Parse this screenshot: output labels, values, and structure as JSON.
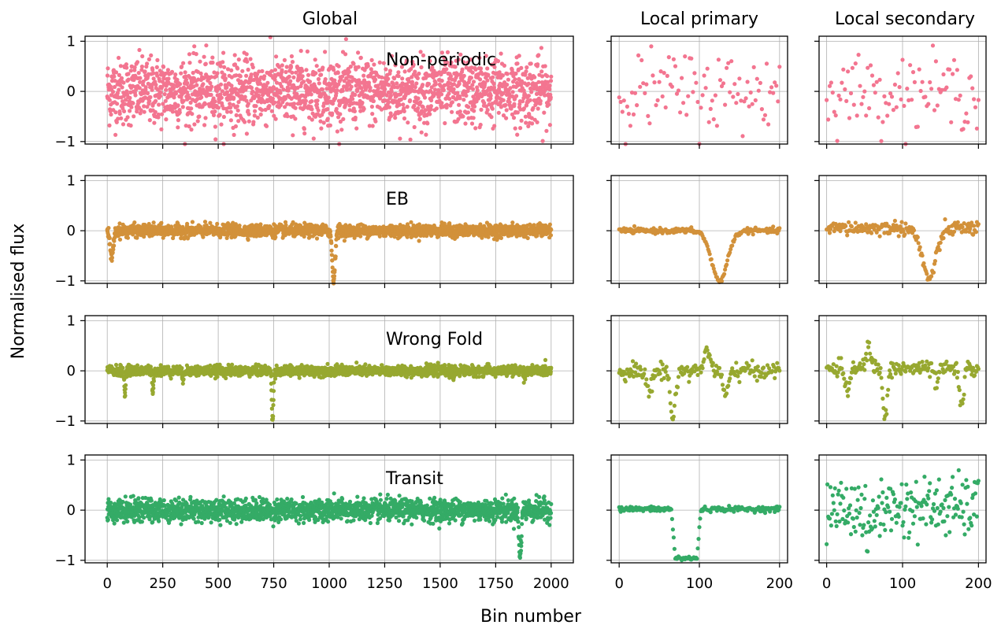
{
  "figure": {
    "column_titles": [
      "Global",
      "Local primary",
      "Local secondary"
    ],
    "xlabel": "Bin number",
    "ylabel": "Normalised flux"
  },
  "chart_data": [
    {
      "type": "scatter",
      "panel": "Non-periodic / Global",
      "row_label": "Non-periodic",
      "color": "#f37590",
      "xlim": [
        -100,
        2100
      ],
      "ylim": [
        -1.05,
        1.1
      ],
      "xticks": [
        0,
        250,
        500,
        750,
        1000,
        1250,
        1500,
        1750,
        2000
      ],
      "yticks": [
        -1,
        0,
        1
      ],
      "grid": true,
      "series": [
        {
          "n_points": 2001,
          "x_range": [
            0,
            2000
          ],
          "baseline": 0.0,
          "noise_sd": 0.33
        }
      ]
    },
    {
      "type": "scatter",
      "panel": "Non-periodic / Local primary",
      "color": "#f37590",
      "xlim": [
        -10,
        210
      ],
      "ylim": [
        -1.05,
        1.1
      ],
      "xticks": [
        0,
        100,
        200
      ],
      "yticks": [
        -1,
        0,
        1
      ],
      "grid": true,
      "series": [
        {
          "n_points": 101,
          "x_range": [
            0,
            200
          ],
          "baseline": 0.0,
          "noise_sd": 0.4
        }
      ]
    },
    {
      "type": "scatter",
      "panel": "Non-periodic / Local secondary",
      "color": "#f37590",
      "xlim": [
        -10,
        210
      ],
      "ylim": [
        -1.05,
        1.1
      ],
      "xticks": [
        0,
        100,
        200
      ],
      "yticks": [
        -1,
        0,
        1
      ],
      "grid": true,
      "series": [
        {
          "n_points": 101,
          "x_range": [
            0,
            200
          ],
          "baseline": 0.0,
          "noise_sd": 0.35
        }
      ]
    },
    {
      "type": "scatter",
      "panel": "EB / Global",
      "row_label": "EB",
      "color": "#d2913a",
      "xlim": [
        -100,
        2100
      ],
      "ylim": [
        -1.05,
        1.1
      ],
      "xticks": [
        0,
        250,
        500,
        750,
        1000,
        1250,
        1500,
        1750,
        2000
      ],
      "yticks": [
        -1,
        0,
        1
      ],
      "grid": true,
      "series": [
        {
          "n_points": 2001,
          "x_range": [
            0,
            2000
          ],
          "baseline": 0.0,
          "noise_sd": 0.06,
          "dips": [
            {
              "center": 20,
              "depth": 0.55,
              "width": 20
            },
            {
              "center": 1020,
              "depth": 1.0,
              "width": 18
            }
          ]
        }
      ]
    },
    {
      "type": "scatter",
      "panel": "EB / Local primary",
      "color": "#d2913a",
      "xlim": [
        -10,
        210
      ],
      "ylim": [
        -1.05,
        1.1
      ],
      "xticks": [
        0,
        100,
        200
      ],
      "yticks": [
        -1,
        0,
        1
      ],
      "grid": true,
      "series": [
        {
          "n_points": 201,
          "x_range": [
            0,
            200
          ],
          "baseline": 0.0,
          "noise_sd": 0.025,
          "dips": [
            {
              "center": 125,
              "depth": 1.0,
              "width": 28
            }
          ]
        }
      ]
    },
    {
      "type": "scatter",
      "panel": "EB / Local secondary",
      "color": "#d2913a",
      "xlim": [
        -10,
        210
      ],
      "ylim": [
        -1.05,
        1.1
      ],
      "xticks": [
        0,
        100,
        200
      ],
      "yticks": [
        -1,
        0,
        1
      ],
      "grid": true,
      "series": [
        {
          "n_points": 201,
          "x_range": [
            0,
            200
          ],
          "baseline": 0.05,
          "noise_sd": 0.07,
          "dips": [
            {
              "center": 135,
              "depth": 1.0,
              "width": 26
            }
          ]
        }
      ]
    },
    {
      "type": "scatter",
      "panel": "Wrong Fold / Global",
      "row_label": "Wrong Fold",
      "color": "#97a830",
      "xlim": [
        -100,
        2100
      ],
      "ylim": [
        -1.05,
        1.1
      ],
      "xticks": [
        0,
        250,
        500,
        750,
        1000,
        1250,
        1500,
        1750,
        2000
      ],
      "yticks": [
        -1,
        0,
        1
      ],
      "grid": true,
      "series": [
        {
          "n_points": 2001,
          "x_range": [
            0,
            2000
          ],
          "baseline": 0.0,
          "noise_sd": 0.05,
          "dips": [
            {
              "center": 80,
              "depth": 0.5,
              "width": 8
            },
            {
              "center": 205,
              "depth": 0.45,
              "width": 8
            },
            {
              "center": 340,
              "depth": 0.2,
              "width": 8
            },
            {
              "center": 745,
              "depth": 1.0,
              "width": 10
            },
            {
              "center": 1560,
              "depth": 0.15,
              "width": 8
            },
            {
              "center": 1880,
              "depth": 0.15,
              "width": 8
            }
          ]
        }
      ]
    },
    {
      "type": "scatter",
      "panel": "Wrong Fold / Local primary",
      "color": "#97a830",
      "xlim": [
        -10,
        210
      ],
      "ylim": [
        -1.05,
        1.1
      ],
      "xticks": [
        0,
        100,
        200
      ],
      "yticks": [
        -1,
        0,
        1
      ],
      "grid": true,
      "series": [
        {
          "n_points": 201,
          "x_range": [
            0,
            200
          ],
          "baseline": 0.0,
          "noise_sd": 0.08,
          "dips": [
            {
              "center": 37,
              "depth": 0.4,
              "width": 10
            },
            {
              "center": 67,
              "depth": 1.0,
              "width": 8
            },
            {
              "center": 133,
              "depth": 0.5,
              "width": 10
            }
          ],
          "bumps": [
            {
              "center": 110,
              "height": 0.45,
              "width": 10
            }
          ]
        }
      ]
    },
    {
      "type": "scatter",
      "panel": "Wrong Fold / Local secondary",
      "color": "#97a830",
      "xlim": [
        -10,
        210
      ],
      "ylim": [
        -1.05,
        1.1
      ],
      "xticks": [
        0,
        100,
        200
      ],
      "yticks": [
        -1,
        0,
        1
      ],
      "grid": true,
      "series": [
        {
          "n_points": 201,
          "x_range": [
            0,
            200
          ],
          "baseline": 0.05,
          "noise_sd": 0.08,
          "dips": [
            {
              "center": 28,
              "depth": 0.4,
              "width": 10
            },
            {
              "center": 77,
              "depth": 1.0,
              "width": 8
            },
            {
              "center": 145,
              "depth": 0.3,
              "width": 8
            },
            {
              "center": 178,
              "depth": 0.8,
              "width": 8
            }
          ],
          "bumps": [
            {
              "center": 55,
              "height": 0.45,
              "width": 8
            }
          ]
        }
      ]
    },
    {
      "type": "scatter",
      "panel": "Transit / Global",
      "row_label": "Transit",
      "color": "#34ab66",
      "xlim": [
        -100,
        2100
      ],
      "ylim": [
        -1.05,
        1.1
      ],
      "xticks": [
        0,
        250,
        500,
        750,
        1000,
        1250,
        1500,
        1750,
        2000
      ],
      "yticks": [
        -1,
        0,
        1
      ],
      "grid": true,
      "series": [
        {
          "n_points": 2001,
          "x_range": [
            0,
            2000
          ],
          "baseline": 0.0,
          "noise_sd": 0.11,
          "dips": [
            {
              "center": 1860,
              "depth": 0.95,
              "width": 14
            }
          ]
        }
      ]
    },
    {
      "type": "scatter",
      "panel": "Transit / Local primary",
      "color": "#34ab66",
      "xlim": [
        -10,
        210
      ],
      "ylim": [
        -1.05,
        1.1
      ],
      "xticks": [
        0,
        100,
        200
      ],
      "yticks": [
        -1,
        0,
        1
      ],
      "grid": true,
      "series": [
        {
          "n_points": 201,
          "x_range": [
            0,
            200
          ],
          "baseline": 0.02,
          "noise_sd": 0.025,
          "box_transit": {
            "ingress": 65,
            "egress": 102,
            "depth": 0.98
          }
        }
      ]
    },
    {
      "type": "scatter",
      "panel": "Transit / Local secondary",
      "color": "#34ab66",
      "xlim": [
        -10,
        210
      ],
      "ylim": [
        -1.05,
        1.1
      ],
      "xticks": [
        0,
        100,
        200
      ],
      "yticks": [
        -1,
        0,
        1
      ],
      "grid": true,
      "series": [
        {
          "n_points": 201,
          "x_range": [
            0,
            200
          ],
          "baseline": 0.05,
          "noise_sd": 0.3,
          "dips": [
            {
              "center": 55,
              "depth": 0.6,
              "width": 12
            }
          ]
        }
      ]
    }
  ]
}
